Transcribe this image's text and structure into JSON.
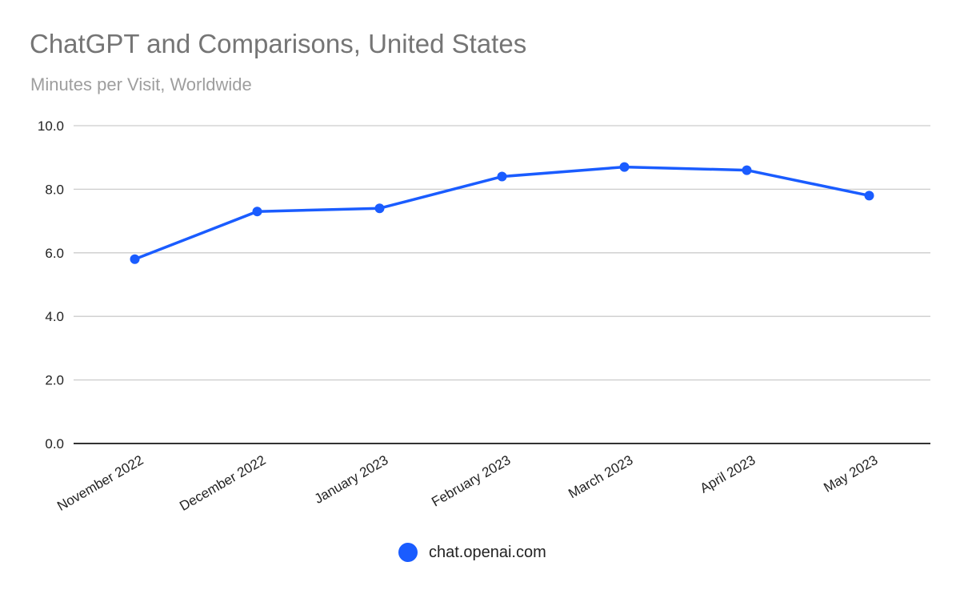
{
  "chart_data": {
    "type": "line",
    "title": "ChatGPT and Comparisons, United States",
    "subtitle": "Minutes per Visit, Worldwide",
    "xlabel": "",
    "ylabel": "",
    "categories": [
      "November 2022",
      "December 2022",
      "January 2023",
      "February 2023",
      "March 2023",
      "April 2023",
      "May 2023"
    ],
    "series": [
      {
        "name": "chat.openai.com",
        "color": "#1a5cff",
        "values": [
          5.8,
          7.3,
          7.4,
          8.4,
          8.7,
          8.6,
          7.8
        ]
      }
    ],
    "ylim": [
      0,
      10
    ],
    "yticks": [
      "0.0",
      "2.0",
      "4.0",
      "6.0",
      "8.0",
      "10.0"
    ],
    "grid": true,
    "legend_position": "bottom"
  }
}
